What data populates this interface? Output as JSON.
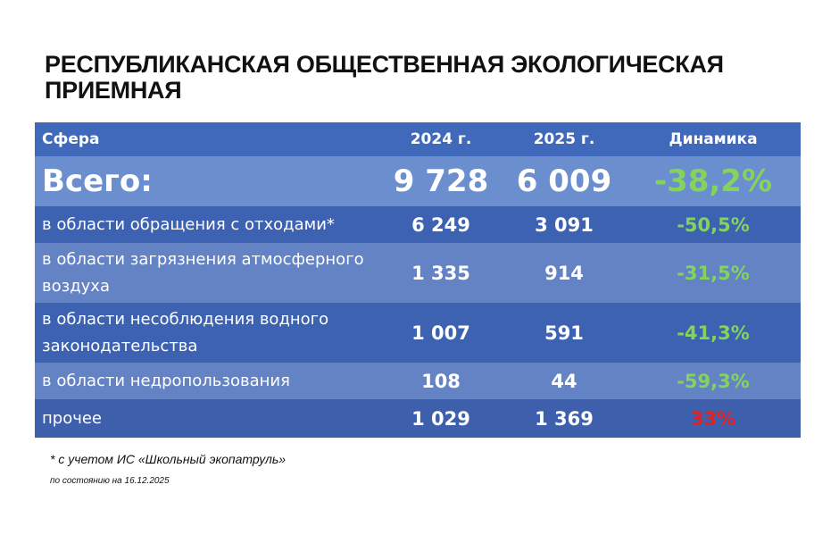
{
  "title": "РЕСПУБЛИКАНСКАЯ ОБЩЕСТВЕННАЯ ЭКОЛОГИЧЕСКАЯ ПРИЕМНАЯ",
  "table": {
    "headers": [
      "Сфера",
      "2024 г.",
      "2025 г.",
      "Динамика"
    ],
    "total": {
      "label": "Всего:",
      "y2024": "9 728",
      "y2025": "6 009",
      "dynamics": "-38,2%"
    },
    "rows": [
      {
        "label": "в области обращения с отходами*",
        "y2024": "6 249",
        "y2025": "3 091",
        "dynamics": "-50,5%",
        "trend": "down"
      },
      {
        "label": "в области загрязнения атмосферного воздуха",
        "y2024": "1 335",
        "y2025": "914",
        "dynamics": "-31,5%",
        "trend": "down"
      },
      {
        "label": "в области несоблюдения водного законодательства",
        "y2024": "1 007",
        "y2025": "591",
        "dynamics": "-41,3%",
        "trend": "down"
      },
      {
        "label": "в области недропользования",
        "y2024": "108",
        "y2025": "44",
        "dynamics": "-59,3%",
        "trend": "down"
      },
      {
        "label": "прочее",
        "y2024": "1 029",
        "y2025": "1 369",
        "dynamics": "33%",
        "trend": "up"
      }
    ]
  },
  "footnote": "* с учетом ИС «Школьный экопатруль»",
  "as_of": "по состоянию на 16.12.2025",
  "colors": {
    "header": "#4169bb",
    "decrease": "#83d35c",
    "increase": "#e3211f"
  }
}
